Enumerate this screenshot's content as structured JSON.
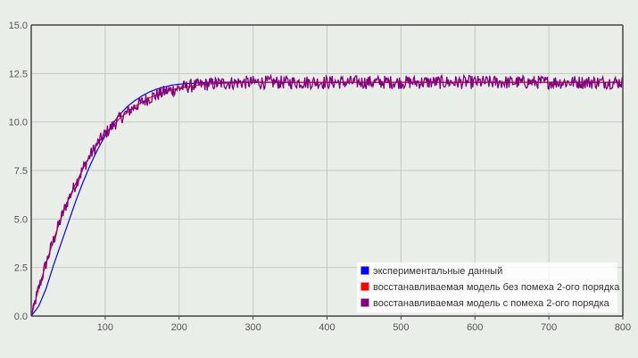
{
  "chart_data": {
    "type": "line",
    "xlim": [
      0,
      800
    ],
    "ylim": [
      0,
      15
    ],
    "x_ticks": [
      "100",
      "200",
      "300",
      "400",
      "500",
      "600",
      "700",
      "800"
    ],
    "y_ticks": [
      "0.0",
      "2.5",
      "5.0",
      "7.5",
      "10.0",
      "12.5",
      "15.0"
    ],
    "grid": true,
    "legend_placement": "bottom-right",
    "series": [
      {
        "name": "экспериментальные данный",
        "color": "#0000ff",
        "x": [
          0,
          10,
          20,
          30,
          40,
          50,
          60,
          70,
          80,
          90,
          100,
          110,
          120,
          130,
          140,
          150,
          160,
          170,
          180,
          190,
          200,
          220,
          240,
          260,
          280,
          300,
          350,
          400,
          500,
          600,
          700,
          800
        ],
        "y": [
          0.0,
          0.5,
          1.4,
          2.6,
          3.7,
          4.8,
          5.9,
          6.9,
          7.8,
          8.6,
          9.3,
          9.9,
          10.4,
          10.8,
          11.1,
          11.35,
          11.55,
          11.7,
          11.8,
          11.9,
          11.95,
          12.0,
          12.05,
          12.05,
          12.05,
          12.05,
          12.05,
          12.05,
          12.05,
          12.05,
          12.05,
          12.05
        ]
      },
      {
        "name": "восстанавливаемая модель без помеха 2-ого порядка",
        "color": "#ff0000",
        "x": [
          0,
          10,
          20,
          30,
          40,
          50,
          60,
          70,
          80,
          90,
          100,
          120,
          140,
          160,
          180,
          200,
          220,
          240,
          260,
          280,
          300,
          350,
          400,
          500,
          600,
          700,
          800
        ],
        "y": [
          0.0,
          1.4,
          2.7,
          3.9,
          5.0,
          6.0,
          6.8,
          7.6,
          8.3,
          8.9,
          9.4,
          10.2,
          10.8,
          11.25,
          11.55,
          11.75,
          11.88,
          11.96,
          12.0,
          12.03,
          12.04,
          12.05,
          12.05,
          12.05,
          12.05,
          12.05,
          12.05
        ]
      },
      {
        "name": "восстанавливаемая модель с помеха 2-ого порядка",
        "color": "#800080",
        "noise_amplitude": 0.35,
        "x": [
          0,
          10,
          20,
          30,
          40,
          50,
          60,
          70,
          80,
          90,
          100,
          120,
          140,
          160,
          180,
          200,
          220,
          240,
          260,
          280,
          300,
          350,
          400,
          500,
          600,
          700,
          800
        ],
        "y": [
          0.0,
          1.4,
          2.7,
          3.9,
          5.0,
          6.0,
          6.8,
          7.6,
          8.3,
          8.9,
          9.4,
          10.2,
          10.8,
          11.25,
          11.55,
          11.75,
          11.88,
          11.96,
          12.0,
          12.03,
          12.04,
          12.05,
          12.05,
          12.05,
          12.05,
          12.05,
          12.05
        ]
      }
    ]
  }
}
